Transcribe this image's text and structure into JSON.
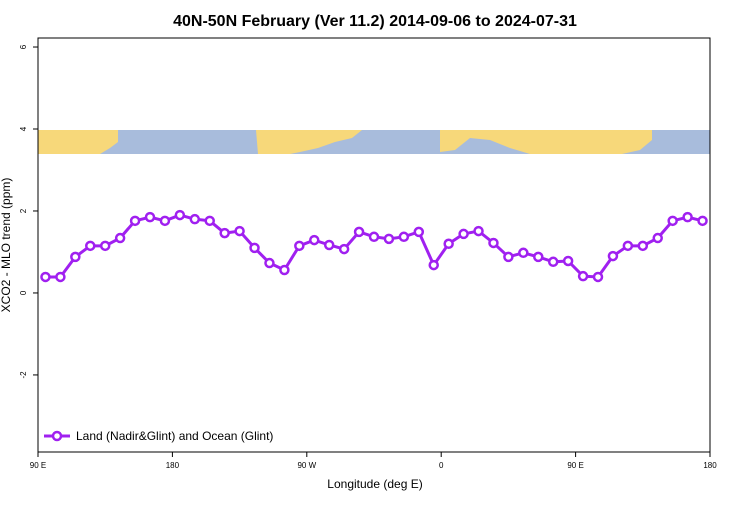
{
  "chart_data": {
    "type": "line",
    "title": "40N-50N February (Ver 11.2)   2014-09-06 to 2024-07-31",
    "x_label": "Longitude (deg E)",
    "y_label": "XCO2 - MLO trend (ppm)",
    "x": [
      95,
      105,
      115,
      125,
      135,
      145,
      155,
      165,
      175,
      185,
      195,
      205,
      215,
      225,
      235,
      245,
      255,
      265,
      275,
      285,
      295,
      305,
      315,
      325,
      335,
      345,
      355,
      365,
      375,
      385,
      395,
      405,
      415,
      425,
      435,
      445,
      455,
      465,
      475,
      485,
      495,
      505,
      515,
      525,
      535
    ],
    "series": [
      {
        "name": "Land (Nadir&Glint) and Ocean (Glint)",
        "color": "#a020f0",
        "values": [
          0.39,
          0.39,
          0.88,
          1.15,
          1.15,
          1.34,
          1.76,
          1.85,
          1.76,
          1.9,
          1.8,
          1.76,
          1.46,
          1.51,
          1.1,
          0.73,
          0.56,
          1.15,
          1.29,
          1.17,
          1.07,
          1.49,
          1.37,
          1.32,
          1.37,
          1.49,
          0.68,
          1.2,
          1.44,
          1.51,
          1.22,
          0.88,
          0.98,
          0.88,
          0.76,
          0.78,
          0.41,
          0.39,
          0.9,
          1.15,
          1.15,
          1.34,
          1.76,
          1.85,
          1.76
        ]
      }
    ],
    "xlim": [
      90,
      540
    ],
    "xticks": [
      {
        "value": 90,
        "label": "90 E"
      },
      180,
      {
        "value": 270,
        "label": "90 W"
      },
      {
        "value": 360,
        "label": "0"
      },
      {
        "value": 450,
        "label": "90 E"
      },
      {
        "value": 540,
        "label": "180"
      }
    ],
    "ylim": [
      -3.88,
      6.22
    ],
    "yticks": [
      -2,
      0,
      2,
      4,
      6
    ],
    "legend": "bottom-left"
  }
}
